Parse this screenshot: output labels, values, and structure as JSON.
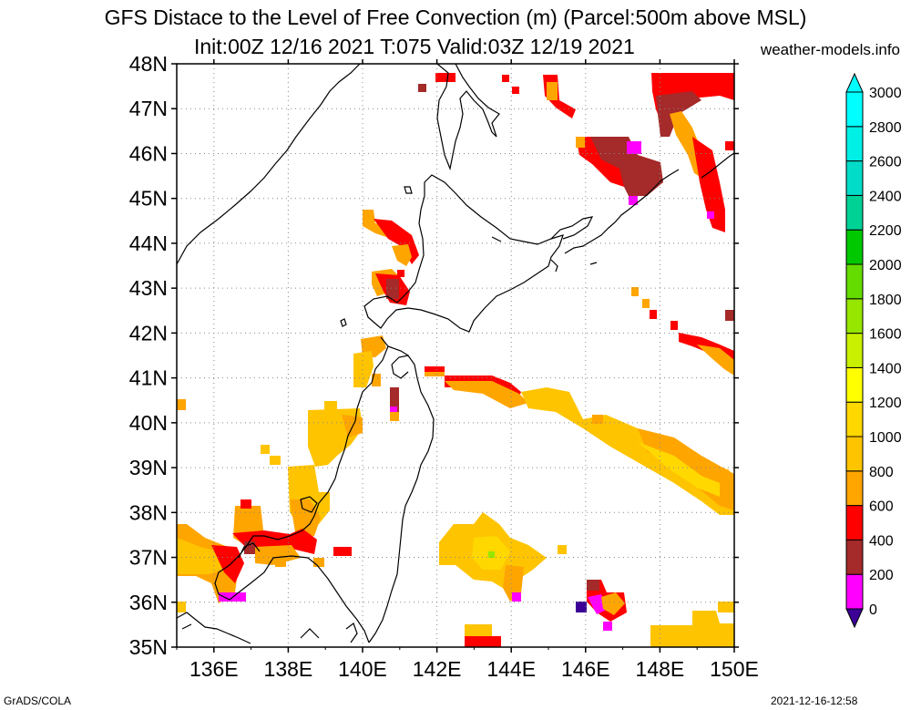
{
  "title": {
    "line1": "GFS Distace to the Level of Free Convection (m) (Parcel:500m above MSL)",
    "line2": "Init:00Z 12/16 2021 T:075 Valid:03Z 12/19 2021"
  },
  "source": "weather-models.info",
  "footer": {
    "left": "GrADS/COLA",
    "right": "2021-12-16-12:58"
  },
  "map": {
    "lon_range": [
      135,
      150
    ],
    "lat_range": [
      35,
      48
    ],
    "lat_labels": [
      "35N",
      "36N",
      "37N",
      "38N",
      "39N",
      "40N",
      "41N",
      "42N",
      "43N",
      "44N",
      "45N",
      "46N",
      "47N",
      "48N"
    ],
    "lon_labels": [
      "136E",
      "138E",
      "140E",
      "142E",
      "144E",
      "146E",
      "148E",
      "150E"
    ]
  },
  "colorbar": {
    "levels": [
      "0",
      "200",
      "400",
      "600",
      "800",
      "1000",
      "1200",
      "1400",
      "1600",
      "1800",
      "2000",
      "2200",
      "2400",
      "2600",
      "2800",
      "3000"
    ],
    "colors": [
      "#3c0096",
      "#ff00ff",
      "#a52a2a",
      "#ff0000",
      "#ffa500",
      "#ffc400",
      "#ffd800",
      "#ffff00",
      "#c8f000",
      "#96e600",
      "#64dc00",
      "#00c800",
      "#00d296",
      "#00dcc8",
      "#00f0e6",
      "#00ffff"
    ]
  },
  "field_colors": {
    "dark": "#a52a2a",
    "red": "#ff0000",
    "orange": "#ffa500",
    "gold": "#ffc400",
    "yellow": "#ffd800",
    "magenta": "#ff00ff",
    "indigo": "#3c0096",
    "green": "#96e600"
  }
}
